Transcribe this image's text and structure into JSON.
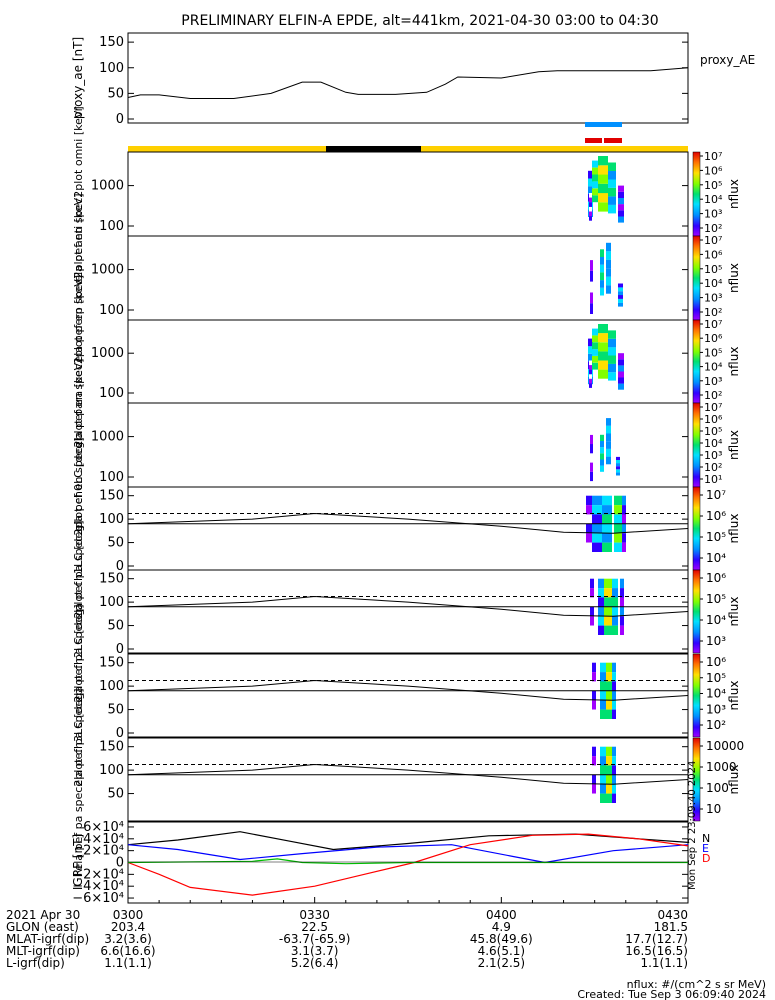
{
  "chart_data": {
    "title": "PRELIMINARY ELFIN-A EPDE, alt=441km, 2021-04-30 03:00 to 04:30",
    "type": "line",
    "panels": [
      {
        "id": "proxy_ae",
        "type": "line",
        "ylabel": "proxy_ae [nT]",
        "ylim": [
          0,
          150
        ],
        "yticks": [
          "0",
          "50",
          "100",
          "150"
        ],
        "legend": "proxy_AE",
        "series": [
          {
            "color": "#000000",
            "x": [
              0,
              2,
              5,
              10,
              17,
              23,
              28,
              31,
              35,
              37,
              39,
              43,
              48,
              51,
              53,
              60,
              66,
              69,
              76,
              84,
              90
            ],
            "values": [
              42,
              47,
              47,
              40,
              40,
              50,
              72,
              72,
              52,
              48,
              48,
              48,
              52,
              68,
              82,
              80,
              92,
              94,
              94,
              94,
              100
            ]
          }
        ]
      },
      {
        "id": "ch0LC",
        "type": "line",
        "ylabel": "ela pef pa spec2plot ch0LC [deg]",
        "ylim": [
          0,
          160
        ],
        "yticks": [
          "0",
          "50",
          "100",
          "150"
        ],
        "series": [
          {
            "style": "solid",
            "x": [
              0,
              20,
              30,
              45,
              60,
              70,
              78,
              90
            ],
            "values": [
              90,
              100,
              112,
              100,
              85,
              72,
              70,
              80
            ]
          },
          {
            "style": "solid",
            "x": [
              0,
              90
            ],
            "values": [
              90,
              90
            ]
          },
          {
            "style": "dashed",
            "x": [
              0,
              90
            ],
            "values": [
              112,
              112
            ]
          }
        ]
      },
      {
        "id": "ch1LC",
        "type": "line",
        "ylabel": "ela pef pa spec2plot ch1LC [deg]",
        "ylim": [
          0,
          160
        ],
        "yticks": [
          "0",
          "50",
          "100",
          "150"
        ],
        "series": [
          {
            "style": "solid",
            "x": [
              0,
              20,
              30,
              45,
              60,
              70,
              78,
              90
            ],
            "values": [
              90,
              100,
              112,
              100,
              85,
              72,
              70,
              80
            ]
          },
          {
            "style": "solid",
            "x": [
              0,
              90
            ],
            "values": [
              90,
              90
            ]
          },
          {
            "style": "dashed",
            "x": [
              0,
              90
            ],
            "values": [
              112,
              112
            ]
          }
        ]
      },
      {
        "id": "ch2LC",
        "type": "line",
        "ylabel": "ela pef pa spec2plot ch2LC [deg]",
        "ylim": [
          0,
          160
        ],
        "yticks": [
          "0",
          "50",
          "100",
          "150"
        ],
        "series": [
          {
            "style": "solid",
            "x": [
              0,
              20,
              30,
              45,
              60,
              70,
              78,
              90
            ],
            "values": [
              90,
              100,
              112,
              100,
              85,
              72,
              70,
              80
            ]
          },
          {
            "style": "solid",
            "x": [
              0,
              90
            ],
            "values": [
              90,
              90
            ]
          },
          {
            "style": "dashed",
            "x": [
              0,
              90
            ],
            "values": [
              112,
              112
            ]
          }
        ]
      },
      {
        "id": "ch3LC",
        "type": "line",
        "ylabel": "ela pef pa spec2plot ch3LC [deg]",
        "ylim": [
          0,
          160
        ],
        "yticks": [
          "50",
          "100",
          "150"
        ],
        "series": [
          {
            "style": "solid",
            "x": [
              0,
              20,
              30,
              45,
              60,
              70,
              78,
              90
            ],
            "values": [
              90,
              100,
              112,
              100,
              85,
              72,
              70,
              80
            ]
          },
          {
            "style": "solid",
            "x": [
              0,
              90
            ],
            "values": [
              90,
              90
            ]
          },
          {
            "style": "dashed",
            "x": [
              0,
              90
            ],
            "values": [
              112,
              112
            ]
          }
        ]
      },
      {
        "id": "igrf",
        "type": "line",
        "ylabel": "IGRF [nT]",
        "ylim": [
          -65000,
          65000
        ],
        "yticks": [
          "6×10⁴",
          "4×10⁴",
          "2×10⁴",
          "0",
          "−2×10⁴",
          "−4×10⁴",
          "−6×10⁴"
        ],
        "legend": [
          "N",
          "E",
          "D"
        ],
        "series": [
          {
            "name": "N",
            "color": "#000000",
            "x": [
              0,
              8,
              18,
              26,
              33,
              45,
              58,
              72,
              82,
              90
            ],
            "values": [
              30000,
              38000,
              52000,
              36000,
              22000,
              32000,
              45000,
              48000,
              40000,
              34000
            ]
          },
          {
            "name": "E",
            "color": "#0000ff",
            "x": [
              0,
              8,
              18,
              28,
              40,
              52,
              62,
              67,
              78,
              90
            ],
            "values": [
              30000,
              22000,
              5000,
              15000,
              26000,
              30000,
              10000,
              0,
              20000,
              30000
            ]
          },
          {
            "name": "D",
            "color": "#ff0000",
            "x": [
              0,
              5,
              10,
              20,
              30,
              38,
              46,
              55,
              65,
              74,
              82,
              90
            ],
            "values": [
              0,
              -20000,
              -42000,
              -55000,
              -40000,
              -20000,
              0,
              30000,
              46000,
              48000,
              40000,
              28000
            ]
          },
          {
            "color": "#00bb00",
            "x": [
              0,
              20,
              24,
              28,
              35,
              45,
              60,
              75,
              90
            ],
            "values": [
              0,
              2000,
              6000,
              0,
              -2000,
              0,
              0,
              0,
              0
            ]
          }
        ]
      }
    ],
    "spectrograms": [
      {
        "id": "omni",
        "ylabel": "ela pef en spec2plot omni [keV]",
        "yticks": [
          "100",
          "1000"
        ],
        "colorbar": {
          "label": "nflux",
          "ticks": [
            "10²",
            "10³",
            "10⁴",
            "10⁵",
            "10⁶",
            "10⁷"
          ]
        }
      },
      {
        "id": "anti",
        "ylabel": "ela pef en spec2plot anti [keV]",
        "yticks": [
          "100",
          "1000"
        ],
        "colorbar": {
          "label": "nflux",
          "ticks": [
            "10²",
            "10³",
            "10⁴",
            "10⁵",
            "10⁶",
            "10⁷"
          ]
        }
      },
      {
        "id": "perp",
        "ylabel": "ela pef en spec2plot perp [keV]",
        "yticks": [
          "100",
          "1000"
        ],
        "colorbar": {
          "label": "nflux",
          "ticks": [
            "10²",
            "10³",
            "10⁴",
            "10⁵",
            "10⁶",
            "10⁷"
          ]
        }
      },
      {
        "id": "para",
        "ylabel": "ela pef en spec2plot para [keV]",
        "yticks": [
          "100",
          "1000"
        ],
        "colorbar": {
          "label": "nflux",
          "ticks": [
            "10¹",
            "10²",
            "10³",
            "10⁴",
            "10⁵",
            "10⁶",
            "10⁷"
          ]
        }
      }
    ],
    "pitch_colorbars": [
      {
        "label": "nflux",
        "ticks": [
          "10⁴",
          "10⁵",
          "10⁶",
          "10⁷"
        ]
      },
      {
        "label": "nflux",
        "ticks": [
          "10³",
          "10⁴",
          "10⁵",
          "10⁶"
        ]
      },
      {
        "label": "nflux",
        "ticks": [
          "10²",
          "10³",
          "10⁴",
          "10⁵",
          "10⁶"
        ]
      },
      {
        "label": "nflux",
        "ticks": [
          "10",
          "100",
          "1000",
          "10000"
        ]
      }
    ],
    "x_axis": {
      "labels": [
        {
          "label": "2021 Apr 30",
          "values": [
            "0300",
            "0330",
            "0400",
            "0430"
          ]
        },
        {
          "label": "GLON (east)",
          "values": [
            "203.4",
            "22.5",
            "4.9",
            "181.5"
          ]
        },
        {
          "label": "MLAT-igrf(dip)",
          "values": [
            "3.2(3.6)",
            "-63.7(-65.9)",
            "45.8(49.6)",
            "17.7(12.7)"
          ]
        },
        {
          "label": "MLT-igrf(dip)",
          "values": [
            "6.6(16.6)",
            "3.1(3.7)",
            "4.6(5.1)",
            "16.5(16.5)"
          ]
        },
        {
          "label": "L-igrf(dip)",
          "values": [
            "1.1(1.1)",
            "5.2(6.4)",
            "2.1(2.5)",
            "1.1(1.1)"
          ]
        }
      ]
    },
    "footer": {
      "units": "nflux: #/(cm^2 s sr MeV)",
      "created": "Created: Tue Sep  3 06:09:40 2024",
      "side": "Mon Sep  2 23:09:40 2024"
    }
  }
}
